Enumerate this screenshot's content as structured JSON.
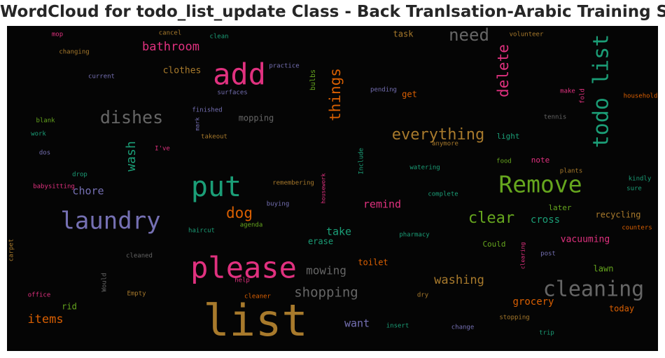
{
  "chart_data": {
    "type": "wordcloud",
    "title": "WordCloud for todo_list_update Class - Back Tranlsation-Arabic Training Set",
    "background": "#050505",
    "words": [
      {
        "text": "list",
        "color": "#a87a2c",
        "size": 62,
        "rotate": 0
      },
      {
        "text": "add",
        "color": "#e0317f",
        "size": 42,
        "rotate": 0
      },
      {
        "text": "please",
        "color": "#e0317f",
        "size": 42,
        "rotate": 0
      },
      {
        "text": "put",
        "color": "#1b9e77",
        "size": 40,
        "rotate": 0
      },
      {
        "text": "laundry",
        "color": "#7570b3",
        "size": 34,
        "rotate": 0
      },
      {
        "text": "Remove",
        "color": "#66a61e",
        "size": 33,
        "rotate": 0
      },
      {
        "text": "todo list",
        "color": "#1b9e77",
        "size": 30,
        "rotate": -90
      },
      {
        "text": "cleaning",
        "color": "#666666",
        "size": 30,
        "rotate": 0
      },
      {
        "text": "dishes",
        "color": "#666666",
        "size": 25,
        "rotate": 0
      },
      {
        "text": "need",
        "color": "#666666",
        "size": 24,
        "rotate": 0
      },
      {
        "text": "everything",
        "color": "#a87a2c",
        "size": 22,
        "rotate": 0
      },
      {
        "text": "clear",
        "color": "#66a61e",
        "size": 22,
        "rotate": 0
      },
      {
        "text": "delete",
        "color": "#e0317f",
        "size": 21,
        "rotate": -90
      },
      {
        "text": "things",
        "color": "#d95f02",
        "size": 21,
        "rotate": -90
      },
      {
        "text": "dog",
        "color": "#d95f02",
        "size": 21,
        "rotate": 0
      },
      {
        "text": "wash",
        "color": "#1b9e77",
        "size": 18,
        "rotate": -90
      },
      {
        "text": "shopping",
        "color": "#666666",
        "size": 19,
        "rotate": 0
      },
      {
        "text": "bathroom",
        "color": "#e0317f",
        "size": 17,
        "rotate": 0
      },
      {
        "text": "washing",
        "color": "#a87a2c",
        "size": 17,
        "rotate": 0
      },
      {
        "text": "items",
        "color": "#d95f02",
        "size": 17,
        "rotate": 0
      },
      {
        "text": "mowing",
        "color": "#666666",
        "size": 16,
        "rotate": 0
      },
      {
        "text": "chore",
        "color": "#7570b3",
        "size": 15,
        "rotate": 0
      },
      {
        "text": "take",
        "color": "#1b9e77",
        "size": 15,
        "rotate": 0
      },
      {
        "text": "remind",
        "color": "#e0317f",
        "size": 15,
        "rotate": 0
      },
      {
        "text": "want",
        "color": "#7570b3",
        "size": 15,
        "rotate": 0
      },
      {
        "text": "cross",
        "color": "#1b9e77",
        "size": 14,
        "rotate": 0
      },
      {
        "text": "vacuuming",
        "color": "#e0317f",
        "size": 13,
        "rotate": 0
      },
      {
        "text": "grocery",
        "color": "#d95f02",
        "size": 14,
        "rotate": 0
      },
      {
        "text": "clothes",
        "color": "#a87a2c",
        "size": 13,
        "rotate": 0
      },
      {
        "text": "mopping",
        "color": "#666666",
        "size": 12,
        "rotate": 0
      },
      {
        "text": "recycling",
        "color": "#a87a2c",
        "size": 12,
        "rotate": 0
      },
      {
        "text": "lawn",
        "color": "#66a61e",
        "size": 12,
        "rotate": 0
      },
      {
        "text": "today",
        "color": "#d95f02",
        "size": 12,
        "rotate": 0
      },
      {
        "text": "task",
        "color": "#a87a2c",
        "size": 12,
        "rotate": 0
      },
      {
        "text": "get",
        "color": "#d95f02",
        "size": 12,
        "rotate": 0
      },
      {
        "text": "toilet",
        "color": "#d95f02",
        "size": 12,
        "rotate": 0
      },
      {
        "text": "erase",
        "color": "#1b9e77",
        "size": 12,
        "rotate": 0
      },
      {
        "text": "rid",
        "color": "#66a61e",
        "size": 12,
        "rotate": 0
      },
      {
        "text": "light",
        "color": "#1b9e77",
        "size": 11,
        "rotate": 0
      },
      {
        "text": "note",
        "color": "#e0317f",
        "size": 11,
        "rotate": 0
      },
      {
        "text": "later",
        "color": "#66a61e",
        "size": 11,
        "rotate": 0
      },
      {
        "text": "Could",
        "color": "#66a61e",
        "size": 11,
        "rotate": 0
      },
      {
        "text": "bulbs",
        "color": "#66a61e",
        "size": 10,
        "rotate": -90
      },
      {
        "text": "practice",
        "color": "#7570b3",
        "size": 9,
        "rotate": 0
      },
      {
        "text": "pending",
        "color": "#7570b3",
        "size": 9,
        "rotate": 0
      },
      {
        "text": "surfaces",
        "color": "#7570b3",
        "size": 9,
        "rotate": 0
      },
      {
        "text": "current",
        "color": "#7570b3",
        "size": 9,
        "rotate": 0
      },
      {
        "text": "changing",
        "color": "#a87a2c",
        "size": 9,
        "rotate": 0
      },
      {
        "text": "mop",
        "color": "#e0317f",
        "size": 9,
        "rotate": 0
      },
      {
        "text": "cancel",
        "color": "#a87a2c",
        "size": 9,
        "rotate": 0
      },
      {
        "text": "clean",
        "color": "#1b9e77",
        "size": 9,
        "rotate": 0
      },
      {
        "text": "volunteer",
        "color": "#a87a2c",
        "size": 9,
        "rotate": 0
      },
      {
        "text": "make",
        "color": "#e0317f",
        "size": 9,
        "rotate": 0
      },
      {
        "text": "fold",
        "color": "#e0317f",
        "size": 9,
        "rotate": -90
      },
      {
        "text": "household",
        "color": "#d95f02",
        "size": 9,
        "rotate": 0
      },
      {
        "text": "tennis",
        "color": "#666666",
        "size": 9,
        "rotate": 0
      },
      {
        "text": "finished",
        "color": "#7570b3",
        "size": 9,
        "rotate": 0
      },
      {
        "text": "mark",
        "color": "#7570b3",
        "size": 8,
        "rotate": -90
      },
      {
        "text": "takeout",
        "color": "#a87a2c",
        "size": 9,
        "rotate": 0
      },
      {
        "text": "blank",
        "color": "#66a61e",
        "size": 9,
        "rotate": 0
      },
      {
        "text": "work",
        "color": "#1b9e77",
        "size": 9,
        "rotate": 0
      },
      {
        "text": "dos",
        "color": "#7570b3",
        "size": 9,
        "rotate": 0
      },
      {
        "text": "I've",
        "color": "#e0317f",
        "size": 9,
        "rotate": 0
      },
      {
        "text": "anymore",
        "color": "#a87a2c",
        "size": 9,
        "rotate": 0
      },
      {
        "text": "Include",
        "color": "#1b9e77",
        "size": 9,
        "rotate": -90
      },
      {
        "text": "watering",
        "color": "#1b9e77",
        "size": 9,
        "rotate": 0
      },
      {
        "text": "food",
        "color": "#66a61e",
        "size": 9,
        "rotate": 0
      },
      {
        "text": "plants",
        "color": "#a87a2c",
        "size": 9,
        "rotate": 0
      },
      {
        "text": "kindly",
        "color": "#1b9e77",
        "size": 9,
        "rotate": 0
      },
      {
        "text": "sure",
        "color": "#1b9e77",
        "size": 9,
        "rotate": 0
      },
      {
        "text": "drop",
        "color": "#1b9e77",
        "size": 9,
        "rotate": 0
      },
      {
        "text": "babysitting",
        "color": "#e0317f",
        "size": 9,
        "rotate": 0
      },
      {
        "text": "remembering",
        "color": "#a87a2c",
        "size": 9,
        "rotate": 0
      },
      {
        "text": "housework",
        "color": "#e0317f",
        "size": 8,
        "rotate": -90
      },
      {
        "text": "complete",
        "color": "#1b9e77",
        "size": 9,
        "rotate": 0
      },
      {
        "text": "buying",
        "color": "#7570b3",
        "size": 9,
        "rotate": 0
      },
      {
        "text": "agenda",
        "color": "#66a61e",
        "size": 9,
        "rotate": 0
      },
      {
        "text": "haircut",
        "color": "#1b9e77",
        "size": 9,
        "rotate": 0
      },
      {
        "text": "pharmacy",
        "color": "#1b9e77",
        "size": 9,
        "rotate": 0
      },
      {
        "text": "counters",
        "color": "#d95f02",
        "size": 9,
        "rotate": 0
      },
      {
        "text": "carpet",
        "color": "#a87a2c",
        "size": 9,
        "rotate": -90
      },
      {
        "text": "cleaned",
        "color": "#666666",
        "size": 9,
        "rotate": 0
      },
      {
        "text": "post",
        "color": "#7570b3",
        "size": 9,
        "rotate": 0
      },
      {
        "text": "clearing",
        "color": "#e0317f",
        "size": 8,
        "rotate": -90
      },
      {
        "text": "Would",
        "color": "#666666",
        "size": 9,
        "rotate": -90
      },
      {
        "text": "help",
        "color": "#e0317f",
        "size": 9,
        "rotate": 0
      },
      {
        "text": "office",
        "color": "#e0317f",
        "size": 9,
        "rotate": 0
      },
      {
        "text": "Empty",
        "color": "#a87a2c",
        "size": 9,
        "rotate": 0
      },
      {
        "text": "cleaner",
        "color": "#d95f02",
        "size": 9,
        "rotate": 0
      },
      {
        "text": "dry",
        "color": "#a87a2c",
        "size": 9,
        "rotate": 0
      },
      {
        "text": "insert",
        "color": "#1b9e77",
        "size": 9,
        "rotate": 0
      },
      {
        "text": "change",
        "color": "#7570b3",
        "size": 9,
        "rotate": 0
      },
      {
        "text": "stopping",
        "color": "#a87a2c",
        "size": 9,
        "rotate": 0
      },
      {
        "text": "trip",
        "color": "#1b9e77",
        "size": 9,
        "rotate": 0
      }
    ]
  }
}
